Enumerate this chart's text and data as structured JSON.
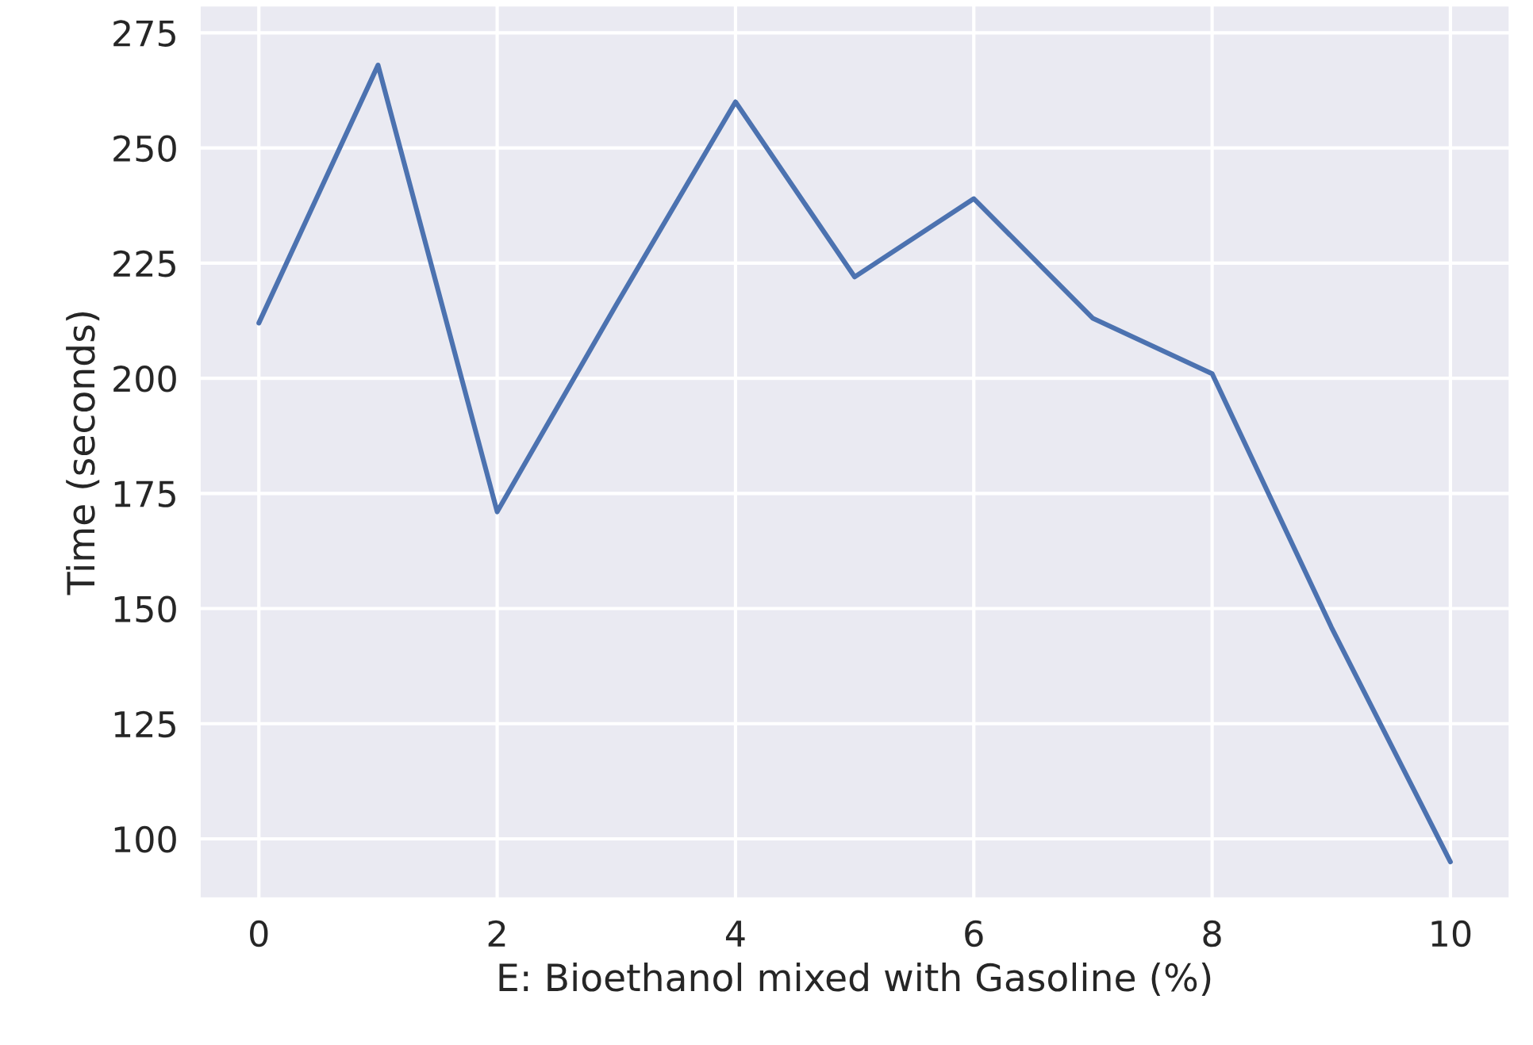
{
  "chart_data": {
    "type": "line",
    "xlabel": "E: Bioethanol mixed with Gasoline (%)",
    "ylabel": "Time (seconds)",
    "x": [
      0,
      1,
      2,
      3,
      4,
      5,
      6,
      7,
      8,
      9,
      10
    ],
    "series": [
      {
        "color": "#4c72b0",
        "values": [
          212,
          268,
          171,
          216,
          260,
          222,
          239,
          213,
          201,
          146,
          95
        ]
      }
    ],
    "xlim": [
      -0.5,
      10.5
    ],
    "ylim": [
      87,
      281
    ],
    "xticks": [
      0,
      2,
      4,
      6,
      8,
      10
    ],
    "yticks": [
      100,
      125,
      150,
      175,
      200,
      225,
      250,
      275
    ],
    "grid": true,
    "marker": "none",
    "line_style": "solid"
  }
}
